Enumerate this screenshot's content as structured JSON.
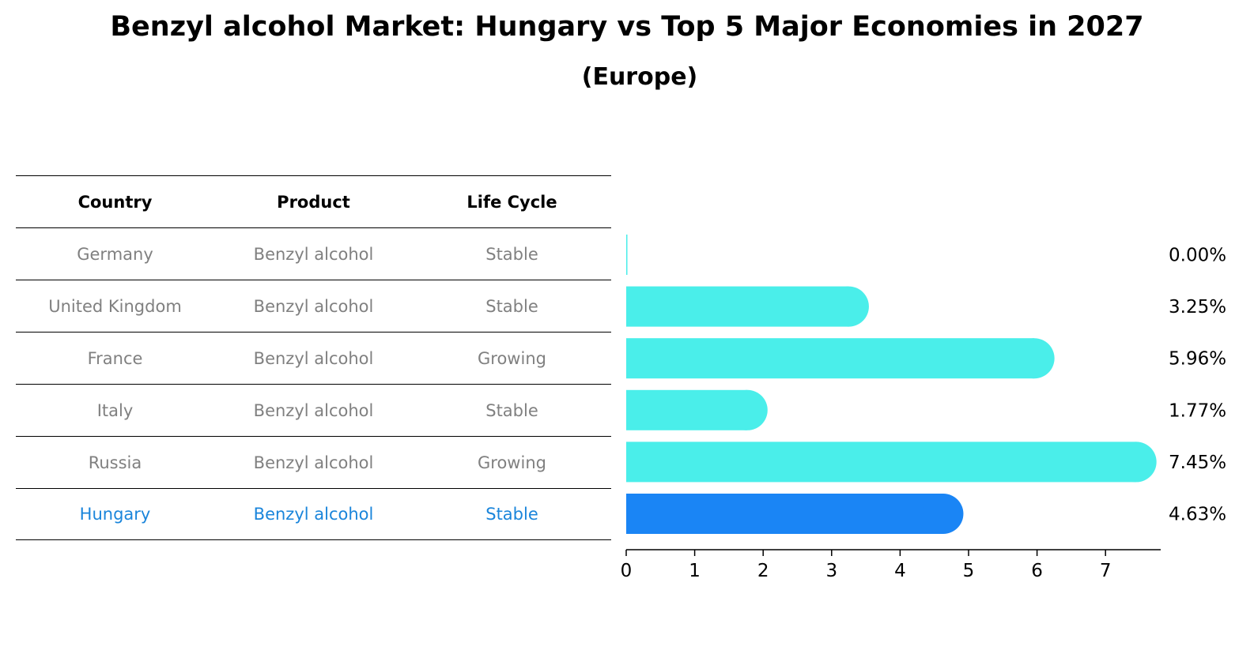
{
  "title": "Benzyl alcohol Market: Hungary vs Top 5 Major Economies in 2027",
  "subtitle": "(Europe)",
  "table": {
    "headers": [
      "Country",
      "Product",
      "Life Cycle"
    ],
    "rows": [
      [
        "Germany",
        "Benzyl alcohol",
        "Stable"
      ],
      [
        "United Kingdom",
        "Benzyl alcohol",
        "Stable"
      ],
      [
        "France",
        "Benzyl alcohol",
        "Growing"
      ],
      [
        "Italy",
        "Benzyl alcohol",
        "Stable"
      ],
      [
        "Russia",
        "Benzyl alcohol",
        "Growing"
      ],
      [
        "Hungary",
        "Benzyl alcohol",
        "Stable"
      ]
    ],
    "highlight_country": "Hungary"
  },
  "colors": {
    "bar": "#4aeeea",
    "highlight_bar": "#1a85f5",
    "highlight_text": "#1a85db",
    "row_text": "#808080"
  },
  "chart_data": {
    "type": "bar",
    "orientation": "horizontal",
    "categories": [
      "Germany",
      "United Kingdom",
      "France",
      "Italy",
      "Russia",
      "Hungary"
    ],
    "values": [
      0.0,
      3.25,
      5.96,
      1.77,
      7.45,
      4.63
    ],
    "value_labels": [
      "0.00%",
      "3.25%",
      "5.96%",
      "1.77%",
      "7.45%",
      "4.63%"
    ],
    "xticks": [
      "0",
      "1",
      "2",
      "3",
      "4",
      "5",
      "6",
      "7"
    ],
    "xlim": [
      0,
      7.8
    ]
  }
}
